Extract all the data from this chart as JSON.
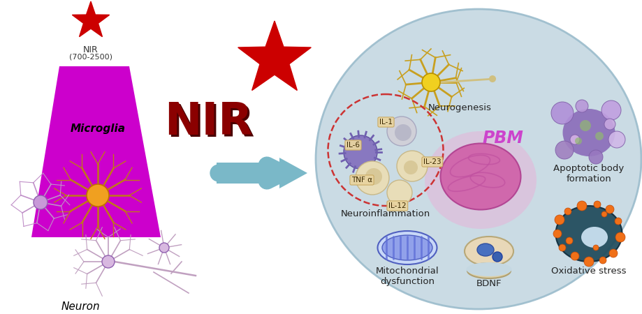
{
  "bg_color": "#ffffff",
  "star_small_color": "#cc0000",
  "star_large_color": "#cc0000",
  "nir_text_color": "#8b0000",
  "microglia_trap_color": "#cc00cc",
  "arrow_color": "#7ab8c8",
  "circle_bg_color": "#c5d8e2",
  "circle_border_color": "#9bbccc",
  "dashed_circle_color": "#cc3333",
  "pbm_color": "#cc44cc",
  "brain_color": "#d070b0",
  "brain_glow_color": "#e090c8",
  "label_neurogenesis": "Neurogenesis",
  "label_neuroinflam": "Neuroinflammation",
  "label_mito": "Mitochondrial\ndysfunction",
  "label_bdnf": "BDNF",
  "label_apoptotic": "Apoptotic body\nformation",
  "label_oxidative": "Oxidative stress",
  "label_pbm": "PBM",
  "label_microglia": "Microglia",
  "label_neuron": "Neuron",
  "label_nir_top": "NIR",
  "label_nir_bot": "(700-2500)",
  "cytokine_tag_color": "#e8d4a0",
  "cytokine_tag_border": "#c8a860"
}
